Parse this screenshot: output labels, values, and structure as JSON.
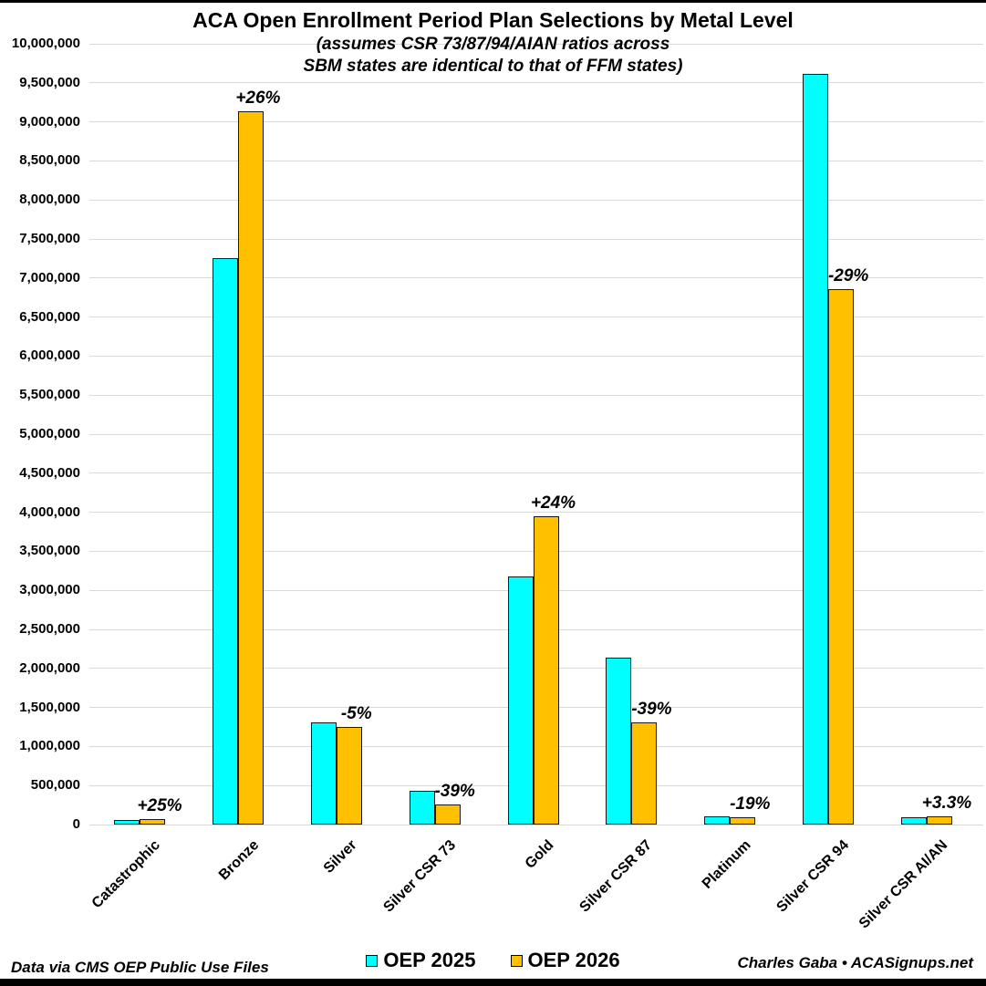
{
  "page": {
    "title": "ACA Open Enrollment Period Plan Selections by Metal Level",
    "subtitle_line1": "(assumes CSR 73/87/94/AIAN ratios across",
    "subtitle_line2": "SBM states are identical to that of FFM states)",
    "footer_left": "Data via CMS OEP Public Use Files",
    "footer_right": "Charles Gaba • ACASignups.net"
  },
  "legend": {
    "position": "bottom",
    "items": [
      {
        "label": "OEP 2025",
        "color": "#00ffff"
      },
      {
        "label": "OEP 2026",
        "color": "#ffc000"
      }
    ]
  },
  "chart_data": {
    "type": "bar",
    "title": "ACA Open Enrollment Period Plan Selections by Metal Level",
    "subtitle": "(assumes CSR 73/87/94/AIAN ratios across SBM states are identical to that of FFM states)",
    "categories": [
      "Catastrophic",
      "Bronze",
      "Silver",
      "Silver CSR 73",
      "Gold",
      "Silver CSR 87",
      "Platinum",
      "Silver CSR 94",
      "Silver CSR AI/AN"
    ],
    "series": [
      {
        "name": "OEP 2025",
        "color": "#00ffff",
        "values": [
          55000,
          7250000,
          1310000,
          430000,
          3180000,
          2140000,
          110000,
          9610000,
          97000
        ]
      },
      {
        "name": "OEP 2026",
        "color": "#ffc000",
        "values": [
          69000,
          9130000,
          1245000,
          262000,
          3950000,
          1305000,
          89000,
          6860000,
          100000
        ]
      }
    ],
    "pct_change_labels": [
      "+25%",
      "+26%",
      "-5%",
      "-39%",
      "+24%",
      "-39%",
      "-19%",
      "-29%",
      "+3.3%"
    ],
    "xlabel": "",
    "ylabel": "",
    "y_axis": {
      "min": 0,
      "max": 10000000,
      "tick_step": 500000,
      "tick_format": "#,##0"
    },
    "grid": true,
    "legend_position": "bottom",
    "bar_border_color": "#1a1a1a",
    "gridline_color": "#d9d9d9"
  }
}
